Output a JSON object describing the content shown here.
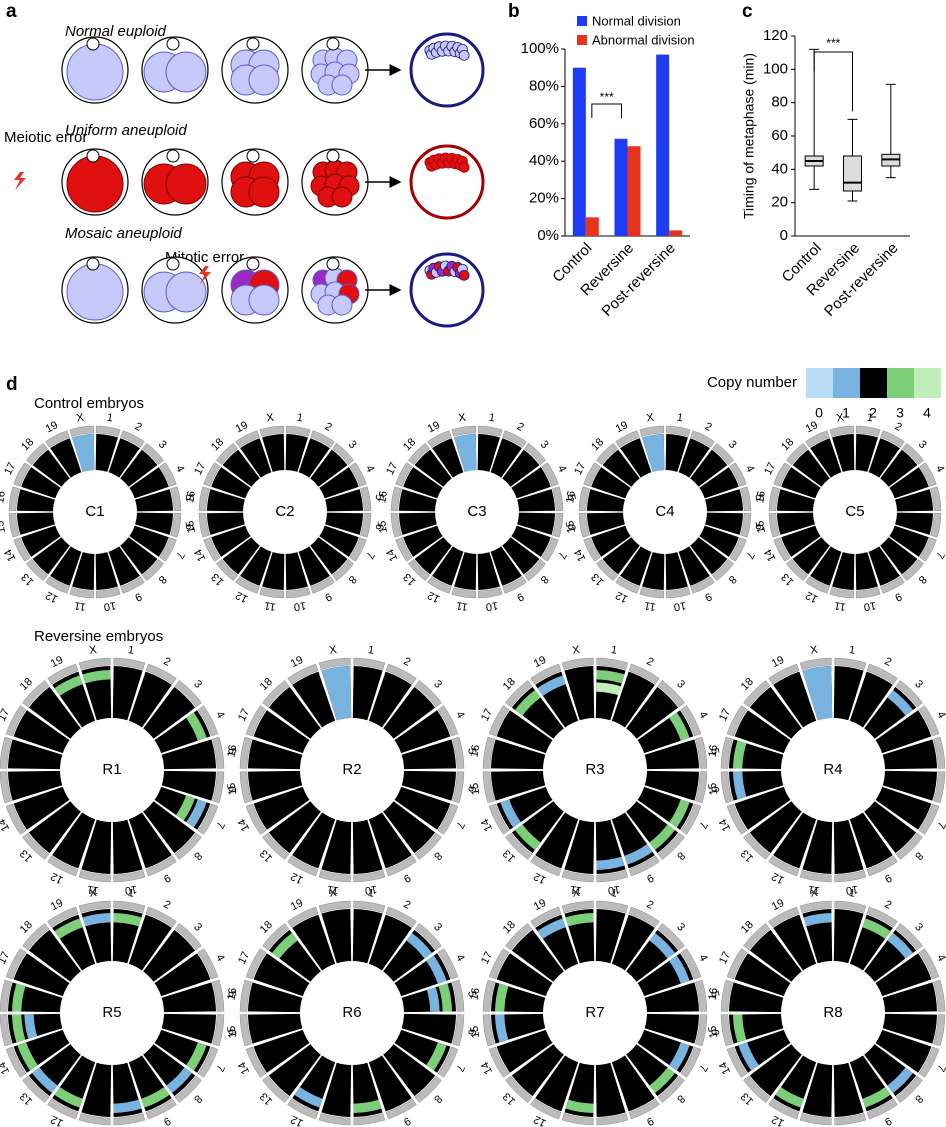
{
  "panel_a": {
    "letter": "a",
    "rows": [
      "Normal euploid",
      "Uniform aneuploid",
      "Mosaic aneuploid"
    ],
    "meiotic_error": "Meiotic error",
    "mitotic_error": "Mitotic error"
  },
  "chart_data": [
    {
      "type": "bar",
      "letter": "b",
      "categories": [
        "Control",
        "Reversine",
        "Post-reversine"
      ],
      "series": [
        {
          "name": "Normal division",
          "color": "#1f3cf5",
          "values": [
            90,
            52,
            97
          ]
        },
        {
          "name": "Abnormal division",
          "color": "#e8341c",
          "values": [
            10,
            48,
            3
          ]
        }
      ],
      "ylim": [
        0,
        100
      ],
      "yticks": [
        {
          "value": 0,
          "label": "0%"
        },
        {
          "value": 20,
          "label": "20%"
        },
        {
          "value": 40,
          "label": "40%"
        },
        {
          "value": 60,
          "label": "60%"
        },
        {
          "value": 80,
          "label": "80%"
        },
        {
          "value": 100,
          "label": "100%"
        }
      ],
      "annotation": "***"
    },
    {
      "type": "box",
      "letter": "c",
      "categories": [
        "Control",
        "Reversine",
        "Post-reversine"
      ],
      "ylabel": "Timing of metaphase (min)",
      "color": "#dcdcdc",
      "boxes": [
        {
          "min": 28,
          "q1": 42,
          "median": 45,
          "q3": 48,
          "max": 112
        },
        {
          "min": 21,
          "q1": 27,
          "median": 32,
          "q3": 48,
          "max": 70
        },
        {
          "min": 35,
          "q1": 42,
          "median": 46,
          "q3": 49,
          "max": 91
        }
      ],
      "ylim": [
        0,
        120
      ],
      "yticks": [
        0,
        20,
        40,
        60,
        80,
        100,
        120
      ],
      "annotation": "***"
    }
  ],
  "panel_d": {
    "letter": "d",
    "chromosomes": [
      "1",
      "2",
      "3",
      "4",
      "5",
      "6",
      "7",
      "8",
      "9",
      "10",
      "11",
      "12",
      "13",
      "14",
      "15",
      "16",
      "17",
      "18",
      "19",
      "X"
    ],
    "legend": {
      "title": "Copy number",
      "levels": [
        0,
        1,
        2,
        3,
        4
      ],
      "colors": [
        "#b9def5",
        "#79b4e0",
        "#000000",
        "#7ccf78",
        "#bfeeb9"
      ]
    },
    "groups": [
      {
        "title": "Control embryos",
        "embryos": [
          {
            "label": "C1",
            "segments": [
              {
                "chromosome": "X",
                "copy_number": 1
              }
            ]
          },
          {
            "label": "C2",
            "segments": []
          },
          {
            "label": "C3",
            "segments": [
              {
                "chromosome": "X",
                "copy_number": 1
              }
            ]
          },
          {
            "label": "C4",
            "segments": [
              {
                "chromosome": "X",
                "copy_number": 1
              }
            ]
          },
          {
            "label": "C5",
            "segments": []
          }
        ]
      },
      {
        "title": "Reversine  embryos",
        "embryos": [
          {
            "label": "R1",
            "segments": [
              {
                "chromosome": "X",
                "copy_number": 3
              },
              {
                "chromosome": "19",
                "copy_number": 3
              },
              {
                "chromosome": "4",
                "copy_number": 3
              },
              {
                "chromosome": "7",
                "copy_number": 1
              },
              {
                "chromosome": "7",
                "copy_number": 3
              }
            ]
          },
          {
            "label": "R2",
            "segments": [
              {
                "chromosome": "X",
                "copy_number": 1
              }
            ]
          },
          {
            "label": "R3",
            "segments": [
              {
                "chromosome": "1",
                "copy_number": 3
              },
              {
                "chromosome": "1",
                "copy_number": 4
              },
              {
                "chromosome": "19",
                "copy_number": 1
              },
              {
                "chromosome": "18",
                "copy_number": 3
              },
              {
                "chromosome": "4",
                "copy_number": 3
              },
              {
                "chromosome": "14",
                "copy_number": 1
              },
              {
                "chromosome": "13",
                "copy_number": 3
              },
              {
                "chromosome": "9",
                "copy_number": 1
              },
              {
                "chromosome": "8",
                "copy_number": 3
              },
              {
                "chromosome": "7",
                "copy_number": 3
              },
              {
                "chromosome": "10",
                "copy_number": 1
              }
            ]
          },
          {
            "label": "R4",
            "segments": [
              {
                "chromosome": "X",
                "copy_number": 1
              },
              {
                "chromosome": "3",
                "copy_number": 1
              },
              {
                "chromosome": "15",
                "copy_number": 1
              },
              {
                "chromosome": "16",
                "copy_number": 3
              }
            ]
          },
          {
            "label": "R5",
            "segments": [
              {
                "chromosome": "X",
                "copy_number": 1
              },
              {
                "chromosome": "19",
                "copy_number": 3
              },
              {
                "chromosome": "16",
                "copy_number": 3
              },
              {
                "chromosome": "15",
                "copy_number": 3
              },
              {
                "chromosome": "15",
                "copy_number": 1
              },
              {
                "chromosome": "14",
                "copy_number": 3
              },
              {
                "chromosome": "13",
                "copy_number": 1
              },
              {
                "chromosome": "12",
                "copy_number": 3
              },
              {
                "chromosome": "10",
                "copy_number": 1
              },
              {
                "chromosome": "9",
                "copy_number": 3
              },
              {
                "chromosome": "8",
                "copy_number": 1
              },
              {
                "chromosome": "7",
                "copy_number": 3
              },
              {
                "chromosome": "1",
                "copy_number": 3
              }
            ]
          },
          {
            "label": "R6",
            "segments": [
              {
                "chromosome": "18",
                "copy_number": 3
              },
              {
                "chromosome": "4",
                "copy_number": 1
              },
              {
                "chromosome": "5",
                "copy_number": 3
              },
              {
                "chromosome": "5",
                "copy_number": 1
              },
              {
                "chromosome": "12",
                "copy_number": 1
              },
              {
                "chromosome": "10",
                "copy_number": 3
              },
              {
                "chromosome": "7",
                "copy_number": 3
              },
              {
                "chromosome": "3",
                "copy_number": 1
              }
            ]
          },
          {
            "label": "R7",
            "segments": [
              {
                "chromosome": "X",
                "copy_number": 3
              },
              {
                "chromosome": "19",
                "copy_number": 1
              },
              {
                "chromosome": "16",
                "copy_number": 3
              },
              {
                "chromosome": "15",
                "copy_number": 1
              },
              {
                "chromosome": "4",
                "copy_number": 1
              },
              {
                "chromosome": "11",
                "copy_number": 3
              },
              {
                "chromosome": "8",
                "copy_number": 3
              },
              {
                "chromosome": "7",
                "copy_number": 1
              },
              {
                "chromosome": "3",
                "copy_number": 1
              }
            ]
          },
          {
            "label": "R8",
            "segments": [
              {
                "chromosome": "X",
                "copy_number": 1
              },
              {
                "chromosome": "2",
                "copy_number": 3
              },
              {
                "chromosome": "15",
                "copy_number": 3
              },
              {
                "chromosome": "14",
                "copy_number": 1
              },
              {
                "chromosome": "12",
                "copy_number": 3
              },
              {
                "chromosome": "9",
                "copy_number": 3
              },
              {
                "chromosome": "8",
                "copy_number": 1
              },
              {
                "chromosome": "3",
                "copy_number": 1
              }
            ]
          }
        ]
      }
    ]
  }
}
